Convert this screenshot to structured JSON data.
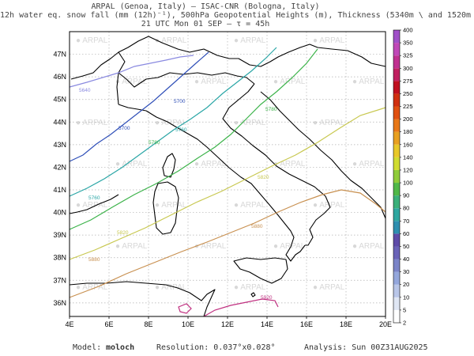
{
  "header": {
    "line1": "ARPAL (Genoa, Italy)  —  ISAC-CNR (Bologna, Italy)",
    "line2": "12h water eq. snow fall (mm (12h)⁻¹), 500hPa Geopotential Heights (m), Thickness (5340m \\ and 1520m /)",
    "line3": "21 UTC Mon 01 SEP  —  τ = 45h"
  },
  "map": {
    "lon_ticks": [
      "4E",
      "6E",
      "8E",
      "10E",
      "12E",
      "14E",
      "16E",
      "18E",
      "20E"
    ],
    "lat_ticks": [
      "36N",
      "37N",
      "38N",
      "39N",
      "40N",
      "41N",
      "42N",
      "43N",
      "44N",
      "45N",
      "46N",
      "47N"
    ],
    "watermark": "ARPAL",
    "contours": [
      {
        "label": "5640",
        "color": "#8a8ae0"
      },
      {
        "label": "5700",
        "color": "#2f4fb8"
      },
      {
        "label": "5760",
        "color": "#2aa6a6"
      },
      {
        "label": "5780",
        "color": "#3cb34a"
      },
      {
        "label": "5820",
        "color": "#c8c850"
      },
      {
        "label": "5880",
        "color": "#c89050"
      },
      {
        "label": "5920",
        "color": "#c03080"
      }
    ]
  },
  "colorbar": {
    "labels": [
      "2",
      "5",
      "10",
      "20",
      "30",
      "40",
      "50",
      "60",
      "70",
      "80",
      "90",
      "100",
      "120",
      "140",
      "160",
      "180",
      "200",
      "225",
      "250",
      "275",
      "300",
      "325",
      "350",
      "400"
    ],
    "colors": [
      "#ffffff",
      "#dfe6f4",
      "#b9c6e8",
      "#94a7dc",
      "#7b84c8",
      "#6a63b8",
      "#5e4ba8",
      "#2f8fb0",
      "#2fa7a0",
      "#3bb07a",
      "#50b848",
      "#8fcc3a",
      "#d0dc30",
      "#e8c828",
      "#e8a020",
      "#e87818",
      "#e05010",
      "#d03010",
      "#c01020",
      "#c02060",
      "#c03090",
      "#c048b8",
      "#a050c8"
    ]
  },
  "footer": {
    "model_label": "Model:",
    "model_value": "moloch",
    "resolution": "Resolution: 0.037°x0.028°",
    "analysis": "Analysis: Sun 00Z31AUG2025"
  }
}
